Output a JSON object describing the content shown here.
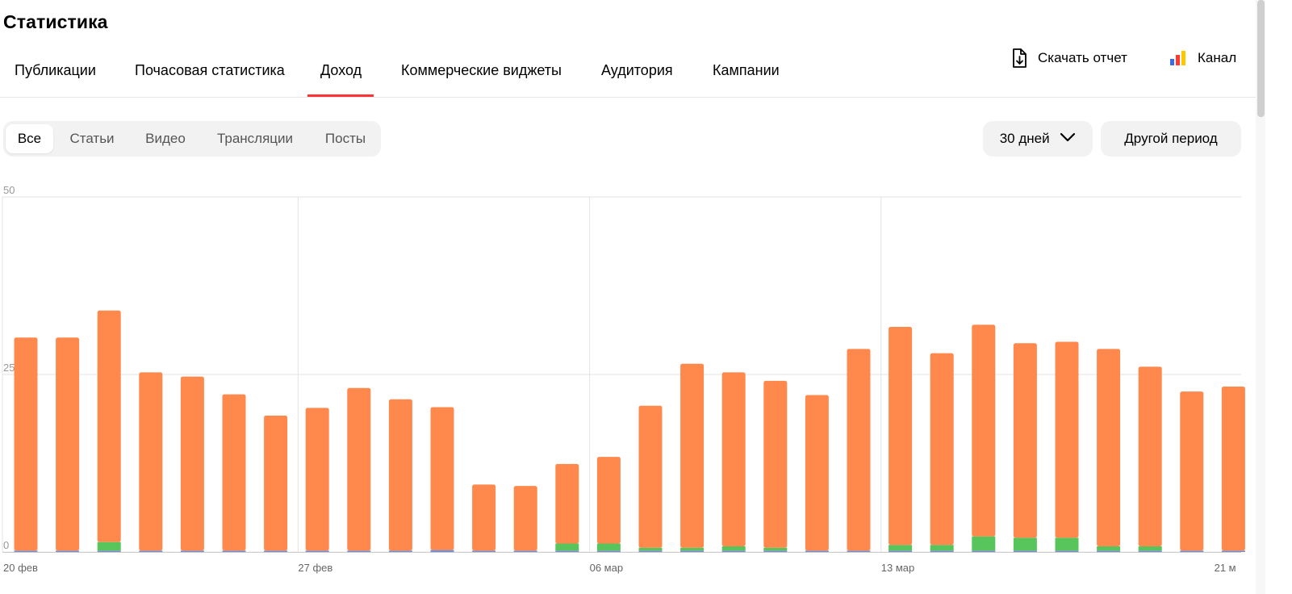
{
  "page": {
    "title": "Статистика"
  },
  "tabs": [
    {
      "label": "Публикации",
      "active": false
    },
    {
      "label": "Почасовая статистика",
      "active": false
    },
    {
      "label": "Доход",
      "active": true
    },
    {
      "label": "Коммерческие виджеты",
      "active": false
    },
    {
      "label": "Аудитория",
      "active": false
    },
    {
      "label": "Кампании",
      "active": false
    }
  ],
  "actions": {
    "download_label": "Скачать отчет",
    "channel_label": "Канал",
    "channel_icon_colors": [
      "#3b6be8",
      "#ff3b30",
      "#ffc700"
    ]
  },
  "filters": {
    "types": [
      {
        "label": "Все",
        "active": true
      },
      {
        "label": "Статьи",
        "active": false
      },
      {
        "label": "Видео",
        "active": false
      },
      {
        "label": "Трансляции",
        "active": false
      },
      {
        "label": "Посты",
        "active": false
      }
    ],
    "period_select": "30 дней",
    "other_period": "Другой период"
  },
  "chart_data": {
    "type": "bar",
    "stacked": true,
    "ylim": [
      0,
      50
    ],
    "yticks": [
      "0",
      "25",
      "50"
    ],
    "grid": true,
    "x_tick_labels": [
      {
        "label": "20 фев",
        "index": 0
      },
      {
        "label": "27 фев",
        "index": 7
      },
      {
        "label": "06 мар",
        "index": 14
      },
      {
        "label": "13 мар",
        "index": 21
      },
      {
        "label": "21 м",
        "index": 29
      }
    ],
    "series": [
      {
        "color": "#7d8fc9",
        "values": [
          0.2,
          0.2,
          0.2,
          0.2,
          0.2,
          0.2,
          0.2,
          0.2,
          0.2,
          0.2,
          0.3,
          0.2,
          0.2,
          0.2,
          0.2,
          0.2,
          0.2,
          0.2,
          0.2,
          0.2,
          0.2,
          0.2,
          0.2,
          0.2,
          0.2,
          0.2,
          0.2,
          0.2,
          0.2,
          0.2
        ]
      },
      {
        "color": "#57c45c",
        "values": [
          0,
          0,
          1.2,
          0,
          0,
          0,
          0,
          0,
          0,
          0,
          0,
          0,
          0,
          1.0,
          1.0,
          0.4,
          0.4,
          0.6,
          0.4,
          0,
          0,
          0.8,
          0.8,
          2.0,
          1.8,
          1.8,
          0.6,
          0.6,
          0,
          0
        ]
      },
      {
        "color": "#ff884d",
        "values": [
          30.0,
          30.0,
          32.6,
          25.1,
          24.5,
          22.0,
          19.0,
          20.1,
          22.9,
          21.3,
          20.1,
          9.3,
          9.1,
          11.2,
          12.2,
          20.0,
          25.9,
          24.5,
          23.5,
          21.9,
          28.4,
          30.7,
          27.0,
          29.8,
          27.4,
          27.6,
          27.8,
          25.3,
          22.4,
          23.1
        ]
      }
    ]
  }
}
